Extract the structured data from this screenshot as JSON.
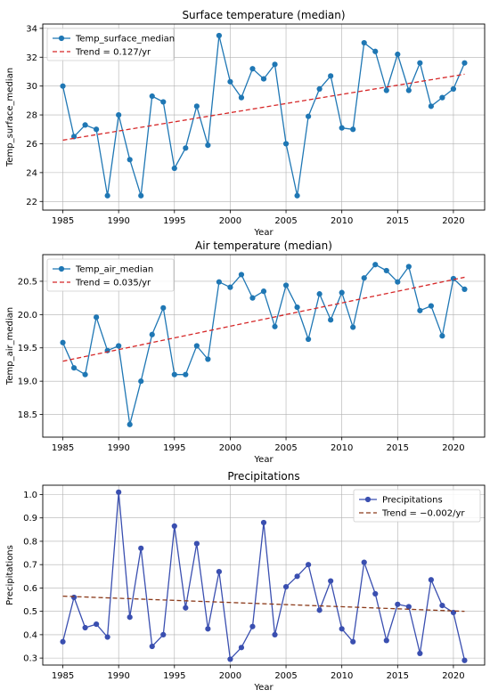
{
  "chart_data": [
    {
      "type": "line",
      "title": "Surface temperature (median)",
      "xlabel": "Year",
      "ylabel": "Temp_surface_median",
      "xlim": [
        1983.2,
        2022.8
      ],
      "ylim": [
        21.4,
        34.3
      ],
      "xticks": [
        1985,
        1990,
        1995,
        2000,
        2005,
        2010,
        2015,
        2020
      ],
      "yticks": [
        22,
        24,
        26,
        28,
        30,
        32,
        34
      ],
      "ytick_decimals": 0,
      "grid": true,
      "legend_position": "top-left",
      "series": [
        {
          "name": "Temp_surface_median",
          "color": "#1f77b4",
          "x": [
            1985,
            1986,
            1987,
            1988,
            1989,
            1990,
            1991,
            1992,
            1993,
            1994,
            1995,
            1996,
            1997,
            1998,
            1999,
            2000,
            2001,
            2002,
            2003,
            2004,
            2005,
            2006,
            2007,
            2008,
            2009,
            2010,
            2011,
            2012,
            2013,
            2014,
            2015,
            2016,
            2017,
            2018,
            2019,
            2020,
            2021
          ],
          "y": [
            30.0,
            26.5,
            27.3,
            27.0,
            22.4,
            28.0,
            24.9,
            22.4,
            29.3,
            28.9,
            24.3,
            25.7,
            28.6,
            25.9,
            33.5,
            30.3,
            29.2,
            31.2,
            30.5,
            31.5,
            26.0,
            22.4,
            27.9,
            29.8,
            30.7,
            27.1,
            27.0,
            33.0,
            32.4,
            29.7,
            32.2,
            29.7,
            31.6,
            28.6,
            29.2,
            29.8,
            31.6
          ]
        }
      ],
      "trend": {
        "label": "Trend = 0.127/yr",
        "color": "#d62728",
        "x": [
          1985,
          2021
        ],
        "y": [
          26.25,
          30.82
        ]
      }
    },
    {
      "type": "line",
      "title": "Air temperature (median)",
      "xlabel": "Year",
      "ylabel": "Temp_air_median",
      "xlim": [
        1983.2,
        2022.8
      ],
      "ylim": [
        18.16,
        20.9
      ],
      "xticks": [
        1985,
        1990,
        1995,
        2000,
        2005,
        2010,
        2015,
        2020
      ],
      "yticks": [
        18.5,
        19.0,
        19.5,
        20.0,
        20.5
      ],
      "ytick_decimals": 1,
      "grid": true,
      "legend_position": "top-left",
      "series": [
        {
          "name": "Temp_air_median",
          "color": "#1f77b4",
          "x": [
            1985,
            1986,
            1987,
            1988,
            1989,
            1990,
            1991,
            1992,
            1993,
            1994,
            1995,
            1996,
            1997,
            1998,
            1999,
            2000,
            2001,
            2002,
            2003,
            2004,
            2005,
            2006,
            2007,
            2008,
            2009,
            2010,
            2011,
            2012,
            2013,
            2014,
            2015,
            2016,
            2017,
            2018,
            2019,
            2020,
            2021
          ],
          "y": [
            19.58,
            19.2,
            19.1,
            19.96,
            19.46,
            19.53,
            18.35,
            19.0,
            19.7,
            20.1,
            19.1,
            19.1,
            19.53,
            19.33,
            20.49,
            20.41,
            20.6,
            20.25,
            20.35,
            19.82,
            20.44,
            20.11,
            19.63,
            20.31,
            19.92,
            20.33,
            19.81,
            20.55,
            20.75,
            20.66,
            20.49,
            20.72,
            20.06,
            20.13,
            19.68,
            20.54,
            20.38
          ]
        }
      ],
      "trend": {
        "label": "Trend = 0.035/yr",
        "color": "#d62728",
        "x": [
          1985,
          2021
        ],
        "y": [
          19.3,
          20.56
        ]
      }
    },
    {
      "type": "line",
      "title": "Precipitations",
      "xlabel": "Year",
      "ylabel": "Precipitations",
      "xlim": [
        1983.2,
        2022.8
      ],
      "ylim": [
        0.27,
        1.04
      ],
      "xticks": [
        1985,
        1990,
        1995,
        2000,
        2005,
        2010,
        2015,
        2020
      ],
      "yticks": [
        0.3,
        0.4,
        0.5,
        0.6,
        0.7,
        0.8,
        0.9,
        1.0
      ],
      "ytick_decimals": 1,
      "grid": true,
      "legend_position": "top-right",
      "series": [
        {
          "name": "Precipitations",
          "color": "#3a4fb0",
          "x": [
            1985,
            1986,
            1987,
            1988,
            1989,
            1990,
            1991,
            1992,
            1993,
            1994,
            1995,
            1996,
            1997,
            1998,
            1999,
            2000,
            2001,
            2002,
            2003,
            2004,
            2005,
            2006,
            2007,
            2008,
            2009,
            2010,
            2011,
            2012,
            2013,
            2014,
            2015,
            2016,
            2017,
            2018,
            2019,
            2020,
            2021
          ],
          "y": [
            0.37,
            0.56,
            0.43,
            0.445,
            0.39,
            1.01,
            0.475,
            0.77,
            0.35,
            0.4,
            0.865,
            0.515,
            0.79,
            0.425,
            0.67,
            0.295,
            0.345,
            0.435,
            0.88,
            0.4,
            0.605,
            0.65,
            0.7,
            0.505,
            0.63,
            0.425,
            0.37,
            0.71,
            0.575,
            0.375,
            0.53,
            0.52,
            0.32,
            0.635,
            0.525,
            0.495,
            0.29
          ]
        }
      ],
      "trend": {
        "label": "Trend = −0.002/yr",
        "color": "#8b3a1a",
        "x": [
          1985,
          2021
        ],
        "y": [
          0.565,
          0.5
        ]
      }
    }
  ]
}
